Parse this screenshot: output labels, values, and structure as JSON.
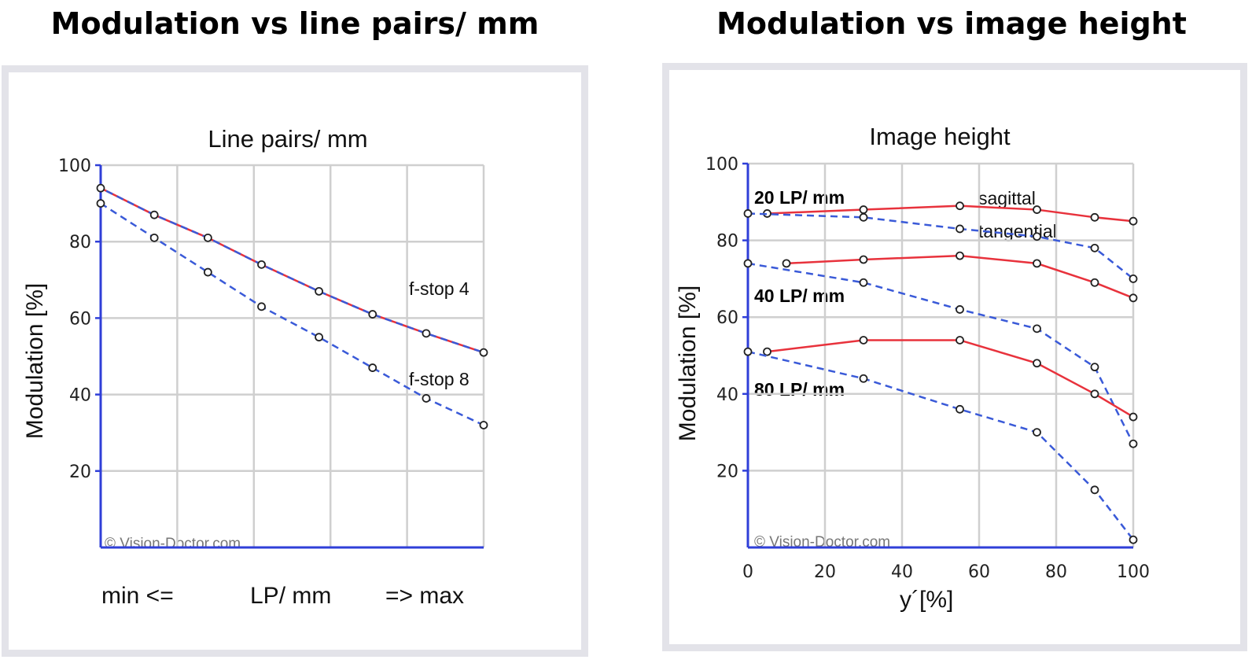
{
  "headings": {
    "left": "Modulation vs line pairs/ mm",
    "right": "Modulation vs image height"
  },
  "chart_data": [
    {
      "type": "line",
      "title": "Line pairs/ mm",
      "ylabel": "Modulation [%]",
      "xlabel": "LP/ mm",
      "x_min_label": "min <=",
      "x_max_label": "=> max",
      "watermark": "© Vision-Doctor.com",
      "ylim": [
        0,
        100
      ],
      "y_ticks": [
        "20",
        "40",
        "60",
        "80",
        "100"
      ],
      "grid": true,
      "x": [
        0,
        14,
        28,
        42,
        57,
        71,
        85,
        100
      ],
      "series": [
        {
          "name": "f-stop 4",
          "color": "#e8323c",
          "dash_color": "#3a5ad8",
          "values": [
            94,
            87,
            81,
            74,
            67,
            61,
            56,
            51
          ]
        },
        {
          "name": "f-stop 8",
          "color": "#3a5ad8",
          "values": [
            90,
            81,
            72,
            63,
            55,
            47,
            39,
            32
          ]
        }
      ]
    },
    {
      "type": "line",
      "title": "Image height",
      "ylabel": "Modulation [%]",
      "xlabel": "y´[%]",
      "watermark": "© Vision-Doctor.com",
      "xlim": [
        0,
        100
      ],
      "ylim": [
        0,
        100
      ],
      "x_ticks": [
        "0",
        "20",
        "40",
        "60",
        "80",
        "100"
      ],
      "y_ticks": [
        "20",
        "40",
        "60",
        "80",
        "100"
      ],
      "grid": true,
      "legend": {
        "solid": "sagittal",
        "dashed": "tangential",
        "solid_color": "#e8323c",
        "dashed_color": "#3a5ad8"
      },
      "groups": [
        {
          "label": "20 LP/ mm",
          "sagittal": {
            "x": [
              5,
              30,
              55,
              75,
              90,
              100
            ],
            "y": [
              87,
              88,
              89,
              88,
              86,
              85
            ]
          },
          "tangential": {
            "x": [
              0,
              30,
              55,
              75,
              90,
              100
            ],
            "y": [
              87,
              86,
              83,
              81,
              78,
              70
            ]
          }
        },
        {
          "label": "40 LP/ mm",
          "sagittal": {
            "x": [
              10,
              30,
              55,
              75,
              90,
              100
            ],
            "y": [
              74,
              75,
              76,
              74,
              69,
              65
            ]
          },
          "tangential": {
            "x": [
              0,
              30,
              55,
              75,
              90,
              100
            ],
            "y": [
              74,
              69,
              62,
              57,
              47,
              27
            ]
          }
        },
        {
          "label": "80 LP/ mm",
          "sagittal": {
            "x": [
              5,
              30,
              55,
              75,
              90,
              100
            ],
            "y": [
              51,
              54,
              54,
              48,
              40,
              34
            ]
          },
          "tangential": {
            "x": [
              0,
              30,
              55,
              75,
              90,
              100
            ],
            "y": [
              51,
              44,
              36,
              30,
              15,
              2
            ]
          }
        }
      ]
    }
  ]
}
